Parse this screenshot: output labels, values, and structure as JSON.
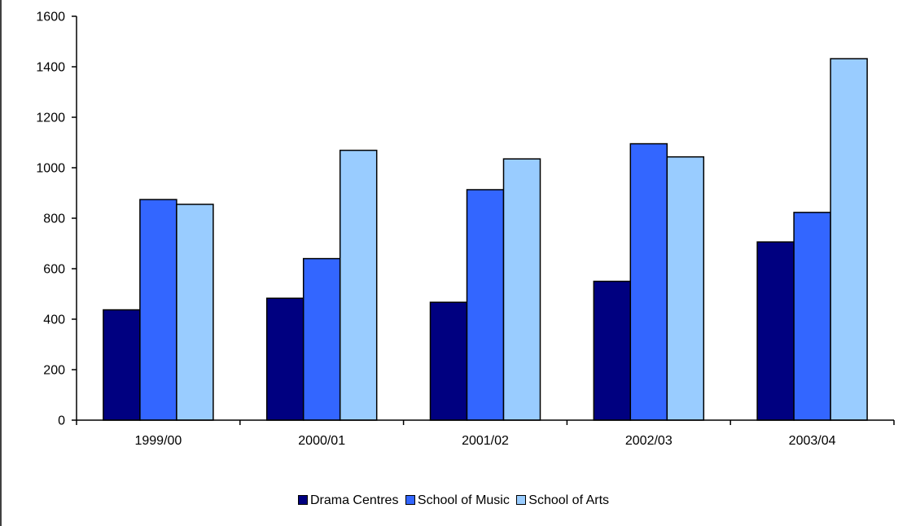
{
  "chart_data": {
    "type": "bar",
    "title": "",
    "xlabel": "",
    "ylabel": "",
    "categories": [
      "1999/00",
      "2000/01",
      "2001/02",
      "2002/03",
      "2003/04"
    ],
    "ylim": [
      0,
      1600
    ],
    "yticks": [
      0,
      200,
      400,
      600,
      800,
      1000,
      1200,
      1400,
      1600
    ],
    "grid": false,
    "legend_position": "bottom",
    "series": [
      {
        "name": "Drama Centres",
        "color": "#000080",
        "values": [
          437,
          483,
          467,
          550,
          706
        ]
      },
      {
        "name": "School of Music",
        "color": "#3366ff",
        "values": [
          874,
          640,
          913,
          1095,
          823
        ]
      },
      {
        "name": "School of Arts",
        "color": "#99ccff",
        "values": [
          855,
          1069,
          1035,
          1043,
          1432
        ]
      }
    ]
  }
}
